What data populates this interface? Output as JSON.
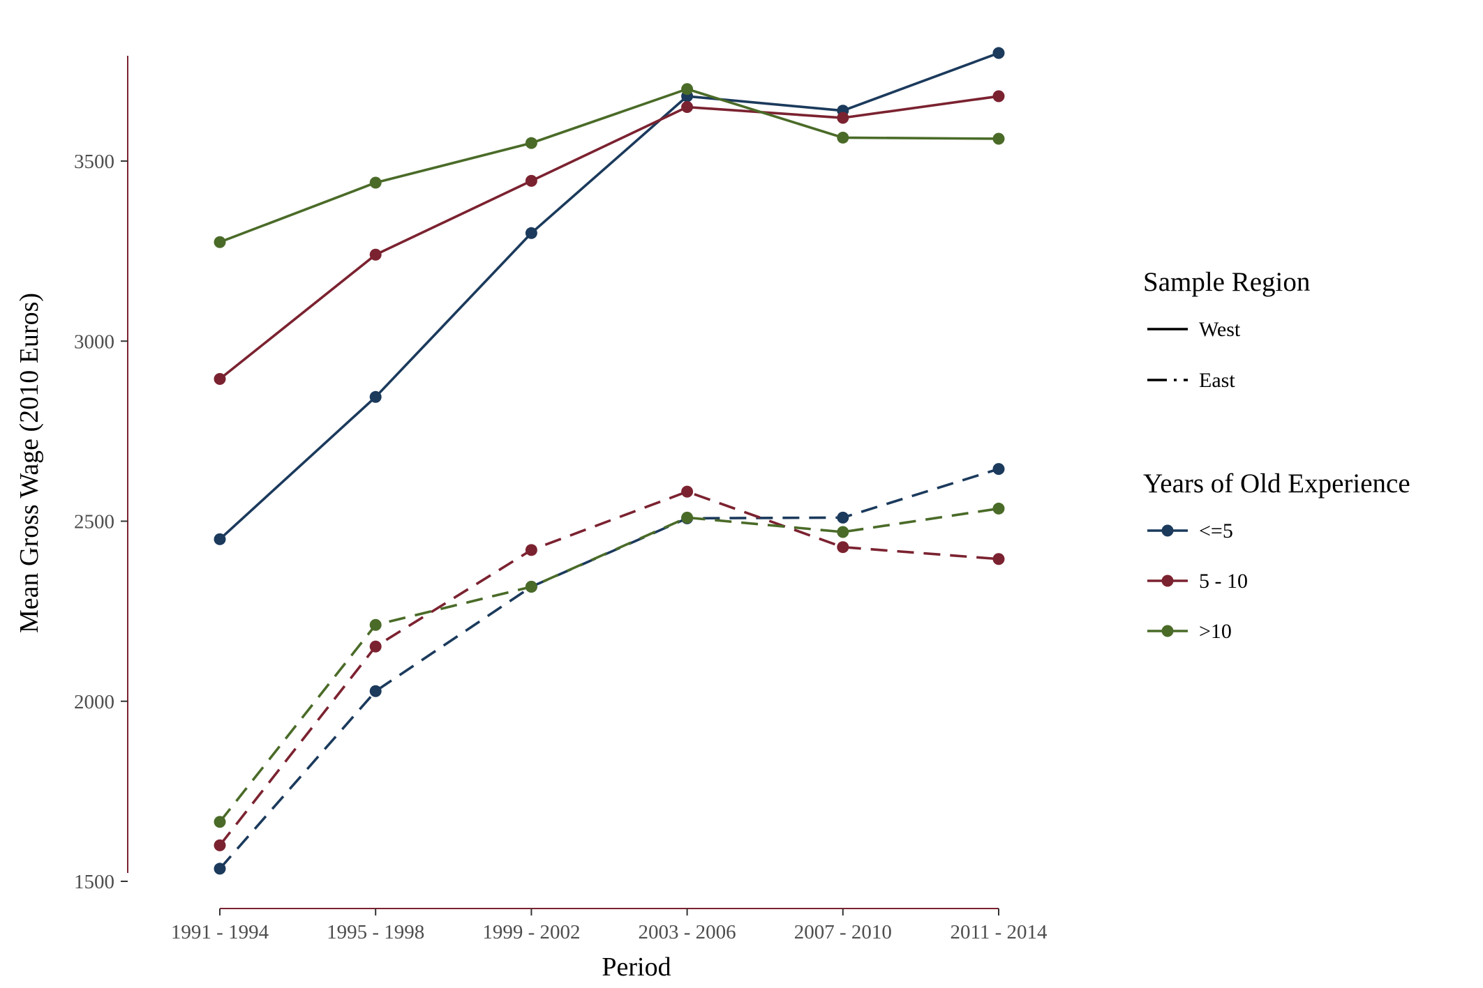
{
  "chart_data": {
    "type": "line",
    "title": "",
    "xlabel": "Period",
    "ylabel": "Mean Gross Wage (2010 Euros)",
    "categories": [
      "1991 - 1994",
      "1995 - 1998",
      "1999 - 2002",
      "2003 - 2006",
      "2007 - 2010",
      "2011 - 2014"
    ],
    "yticks": [
      1500,
      2000,
      2500,
      3000,
      3500
    ],
    "ylim": [
      1530,
      3800
    ],
    "grid": false,
    "legend_position": "right",
    "legend": {
      "linetype_title": "Sample Region",
      "linetypes": [
        {
          "label": "West",
          "style": "solid"
        },
        {
          "label": "East",
          "style": "dashed"
        }
      ],
      "color_title": "Years of Old Experience",
      "groups": [
        {
          "label": "<=5",
          "color": "#1b3a5c"
        },
        {
          "label": "5 - 10",
          "color": "#7b2230"
        },
        {
          "label": ">10",
          "color": "#4a6b28"
        }
      ]
    },
    "series": [
      {
        "group": "<=5",
        "region": "West",
        "color": "#1b3a5c",
        "style": "solid",
        "values": [
          2450,
          2845,
          3300,
          3680,
          3640,
          3800
        ]
      },
      {
        "group": "5 - 10",
        "region": "West",
        "color": "#7b2230",
        "style": "solid",
        "values": [
          2895,
          3240,
          3445,
          3650,
          3620,
          3680
        ]
      },
      {
        "group": ">10",
        "region": "West",
        "color": "#4a6b28",
        "style": "solid",
        "values": [
          3275,
          3440,
          3550,
          3700,
          3565,
          3562
        ]
      },
      {
        "group": "<=5",
        "region": "East",
        "color": "#1b3a5c",
        "style": "dashed",
        "values": [
          1535,
          2028,
          2318,
          2508,
          2510,
          2645
        ]
      },
      {
        "group": "5 - 10",
        "region": "East",
        "color": "#7b2230",
        "style": "dashed",
        "values": [
          1600,
          2152,
          2420,
          2582,
          2428,
          2395
        ]
      },
      {
        "group": ">10",
        "region": "East",
        "color": "#4a6b28",
        "style": "dashed",
        "values": [
          1665,
          2212,
          2318,
          2510,
          2470,
          2535
        ]
      }
    ],
    "axis_color": "#7b2230"
  }
}
